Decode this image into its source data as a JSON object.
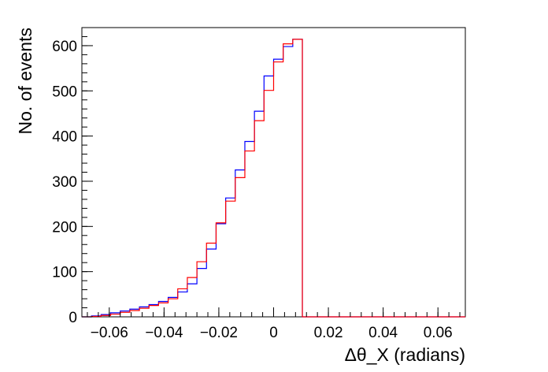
{
  "chart_data": {
    "type": "histogram",
    "xlabel": "Δθ_X (radians)",
    "ylabel": "No. of events",
    "xlim": [
      -0.07,
      0.07
    ],
    "ylim": [
      0,
      640
    ],
    "bin_width": 0.0035,
    "x_ticks": [
      {
        "value": -0.06,
        "label": "−0.06"
      },
      {
        "value": -0.04,
        "label": "−0.04"
      },
      {
        "value": -0.02,
        "label": "−0.02"
      },
      {
        "value": 0,
        "label": "0"
      },
      {
        "value": 0.02,
        "label": "0.02"
      },
      {
        "value": 0.04,
        "label": "0.04"
      },
      {
        "value": 0.06,
        "label": "0.06"
      }
    ],
    "y_ticks": [
      {
        "value": 0,
        "label": "0"
      },
      {
        "value": 100,
        "label": "100"
      },
      {
        "value": 200,
        "label": "200"
      },
      {
        "value": 300,
        "label": "300"
      },
      {
        "value": 400,
        "label": "400"
      },
      {
        "value": 500,
        "label": "500"
      },
      {
        "value": 600,
        "label": "600"
      }
    ],
    "series": [
      {
        "color": "#0000ff",
        "values": [
          0,
          2,
          5,
          9,
          13,
          17,
          22,
          27,
          34,
          43,
          55,
          73,
          107,
          150,
          206,
          263,
          325,
          388,
          455,
          533,
          570,
          598,
          614,
          0,
          0,
          0,
          0,
          0,
          0,
          0,
          0,
          0,
          0,
          0,
          0,
          0,
          0,
          0,
          0,
          0
        ]
      },
      {
        "color": "#ff0000",
        "values": [
          0,
          1,
          3,
          6,
          10,
          14,
          19,
          25,
          31,
          40,
          62,
          87,
          122,
          163,
          208,
          256,
          308,
          367,
          434,
          501,
          564,
          604,
          614,
          0,
          0,
          0,
          0,
          0,
          0,
          0,
          0,
          0,
          0,
          0,
          0,
          0,
          0,
          0,
          0,
          0
        ]
      }
    ]
  }
}
